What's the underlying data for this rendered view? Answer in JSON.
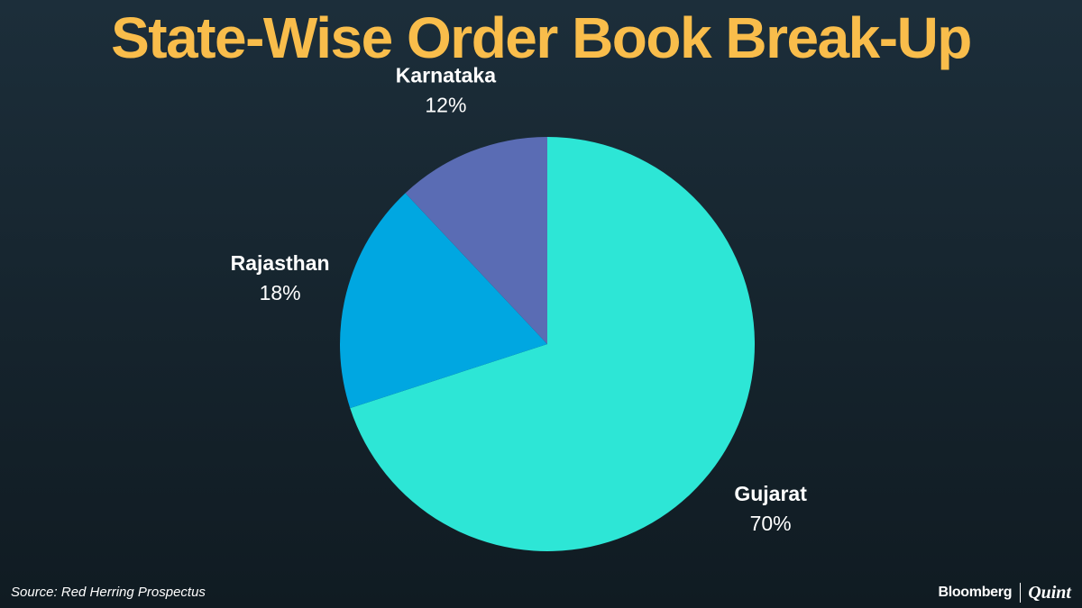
{
  "title": "State-Wise Order Book Break-Up",
  "source": "Source: Red Herring Prospectus",
  "logo": {
    "primary": "Bloomberg",
    "secondary": "Quint"
  },
  "colors": {
    "title": "#f9bd4b",
    "text": "#ffffff",
    "background_top": "#1c2e3a",
    "background_bottom": "#101b22"
  },
  "chart_data": {
    "type": "pie",
    "title": "State-Wise Order Book Break-Up",
    "slices": [
      {
        "label": "Gujarat",
        "value": 70,
        "display": "70%",
        "color": "#2de6d6"
      },
      {
        "label": "Rajasthan",
        "value": 18,
        "display": "18%",
        "color": "#00a7e1"
      },
      {
        "label": "Karnataka",
        "value": 12,
        "display": "12%",
        "color": "#5a6cb4"
      }
    ],
    "start": "12 o'clock",
    "direction": "clockwise",
    "labels_outside": true
  }
}
